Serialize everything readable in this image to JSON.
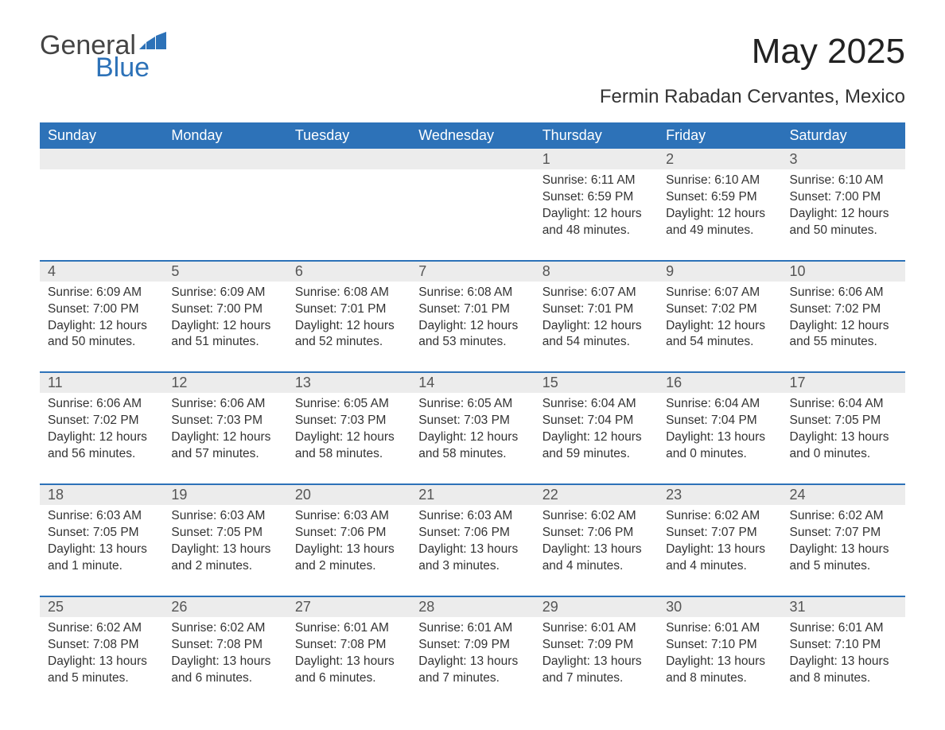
{
  "brand": {
    "general": "General",
    "blue": "Blue"
  },
  "title": "May 2025",
  "subtitle": "Fermin Rabadan Cervantes, Mexico",
  "colors": {
    "header_bg": "#2d72b8",
    "header_text": "#ffffff",
    "daynum_bg": "#ececec",
    "row_border": "#2d72b8",
    "body_text": "#333333",
    "page_bg": "#ffffff"
  },
  "typography": {
    "title_fontsize": 44,
    "subtitle_fontsize": 24,
    "dow_fontsize": 18,
    "daynum_fontsize": 18,
    "body_fontsize": 15.5,
    "font_family": "Segoe UI"
  },
  "dow": [
    "Sunday",
    "Monday",
    "Tuesday",
    "Wednesday",
    "Thursday",
    "Friday",
    "Saturday"
  ],
  "weeks": [
    [
      {
        "n": "",
        "sr": "",
        "ss": "",
        "dl": ""
      },
      {
        "n": "",
        "sr": "",
        "ss": "",
        "dl": ""
      },
      {
        "n": "",
        "sr": "",
        "ss": "",
        "dl": ""
      },
      {
        "n": "",
        "sr": "",
        "ss": "",
        "dl": ""
      },
      {
        "n": "1",
        "sr": "Sunrise: 6:11 AM",
        "ss": "Sunset: 6:59 PM",
        "dl": "Daylight: 12 hours and 48 minutes."
      },
      {
        "n": "2",
        "sr": "Sunrise: 6:10 AM",
        "ss": "Sunset: 6:59 PM",
        "dl": "Daylight: 12 hours and 49 minutes."
      },
      {
        "n": "3",
        "sr": "Sunrise: 6:10 AM",
        "ss": "Sunset: 7:00 PM",
        "dl": "Daylight: 12 hours and 50 minutes."
      }
    ],
    [
      {
        "n": "4",
        "sr": "Sunrise: 6:09 AM",
        "ss": "Sunset: 7:00 PM",
        "dl": "Daylight: 12 hours and 50 minutes."
      },
      {
        "n": "5",
        "sr": "Sunrise: 6:09 AM",
        "ss": "Sunset: 7:00 PM",
        "dl": "Daylight: 12 hours and 51 minutes."
      },
      {
        "n": "6",
        "sr": "Sunrise: 6:08 AM",
        "ss": "Sunset: 7:01 PM",
        "dl": "Daylight: 12 hours and 52 minutes."
      },
      {
        "n": "7",
        "sr": "Sunrise: 6:08 AM",
        "ss": "Sunset: 7:01 PM",
        "dl": "Daylight: 12 hours and 53 minutes."
      },
      {
        "n": "8",
        "sr": "Sunrise: 6:07 AM",
        "ss": "Sunset: 7:01 PM",
        "dl": "Daylight: 12 hours and 54 minutes."
      },
      {
        "n": "9",
        "sr": "Sunrise: 6:07 AM",
        "ss": "Sunset: 7:02 PM",
        "dl": "Daylight: 12 hours and 54 minutes."
      },
      {
        "n": "10",
        "sr": "Sunrise: 6:06 AM",
        "ss": "Sunset: 7:02 PM",
        "dl": "Daylight: 12 hours and 55 minutes."
      }
    ],
    [
      {
        "n": "11",
        "sr": "Sunrise: 6:06 AM",
        "ss": "Sunset: 7:02 PM",
        "dl": "Daylight: 12 hours and 56 minutes."
      },
      {
        "n": "12",
        "sr": "Sunrise: 6:06 AM",
        "ss": "Sunset: 7:03 PM",
        "dl": "Daylight: 12 hours and 57 minutes."
      },
      {
        "n": "13",
        "sr": "Sunrise: 6:05 AM",
        "ss": "Sunset: 7:03 PM",
        "dl": "Daylight: 12 hours and 58 minutes."
      },
      {
        "n": "14",
        "sr": "Sunrise: 6:05 AM",
        "ss": "Sunset: 7:03 PM",
        "dl": "Daylight: 12 hours and 58 minutes."
      },
      {
        "n": "15",
        "sr": "Sunrise: 6:04 AM",
        "ss": "Sunset: 7:04 PM",
        "dl": "Daylight: 12 hours and 59 minutes."
      },
      {
        "n": "16",
        "sr": "Sunrise: 6:04 AM",
        "ss": "Sunset: 7:04 PM",
        "dl": "Daylight: 13 hours and 0 minutes."
      },
      {
        "n": "17",
        "sr": "Sunrise: 6:04 AM",
        "ss": "Sunset: 7:05 PM",
        "dl": "Daylight: 13 hours and 0 minutes."
      }
    ],
    [
      {
        "n": "18",
        "sr": "Sunrise: 6:03 AM",
        "ss": "Sunset: 7:05 PM",
        "dl": "Daylight: 13 hours and 1 minute."
      },
      {
        "n": "19",
        "sr": "Sunrise: 6:03 AM",
        "ss": "Sunset: 7:05 PM",
        "dl": "Daylight: 13 hours and 2 minutes."
      },
      {
        "n": "20",
        "sr": "Sunrise: 6:03 AM",
        "ss": "Sunset: 7:06 PM",
        "dl": "Daylight: 13 hours and 2 minutes."
      },
      {
        "n": "21",
        "sr": "Sunrise: 6:03 AM",
        "ss": "Sunset: 7:06 PM",
        "dl": "Daylight: 13 hours and 3 minutes."
      },
      {
        "n": "22",
        "sr": "Sunrise: 6:02 AM",
        "ss": "Sunset: 7:06 PM",
        "dl": "Daylight: 13 hours and 4 minutes."
      },
      {
        "n": "23",
        "sr": "Sunrise: 6:02 AM",
        "ss": "Sunset: 7:07 PM",
        "dl": "Daylight: 13 hours and 4 minutes."
      },
      {
        "n": "24",
        "sr": "Sunrise: 6:02 AM",
        "ss": "Sunset: 7:07 PM",
        "dl": "Daylight: 13 hours and 5 minutes."
      }
    ],
    [
      {
        "n": "25",
        "sr": "Sunrise: 6:02 AM",
        "ss": "Sunset: 7:08 PM",
        "dl": "Daylight: 13 hours and 5 minutes."
      },
      {
        "n": "26",
        "sr": "Sunrise: 6:02 AM",
        "ss": "Sunset: 7:08 PM",
        "dl": "Daylight: 13 hours and 6 minutes."
      },
      {
        "n": "27",
        "sr": "Sunrise: 6:01 AM",
        "ss": "Sunset: 7:08 PM",
        "dl": "Daylight: 13 hours and 6 minutes."
      },
      {
        "n": "28",
        "sr": "Sunrise: 6:01 AM",
        "ss": "Sunset: 7:09 PM",
        "dl": "Daylight: 13 hours and 7 minutes."
      },
      {
        "n": "29",
        "sr": "Sunrise: 6:01 AM",
        "ss": "Sunset: 7:09 PM",
        "dl": "Daylight: 13 hours and 7 minutes."
      },
      {
        "n": "30",
        "sr": "Sunrise: 6:01 AM",
        "ss": "Sunset: 7:10 PM",
        "dl": "Daylight: 13 hours and 8 minutes."
      },
      {
        "n": "31",
        "sr": "Sunrise: 6:01 AM",
        "ss": "Sunset: 7:10 PM",
        "dl": "Daylight: 13 hours and 8 minutes."
      }
    ]
  ]
}
